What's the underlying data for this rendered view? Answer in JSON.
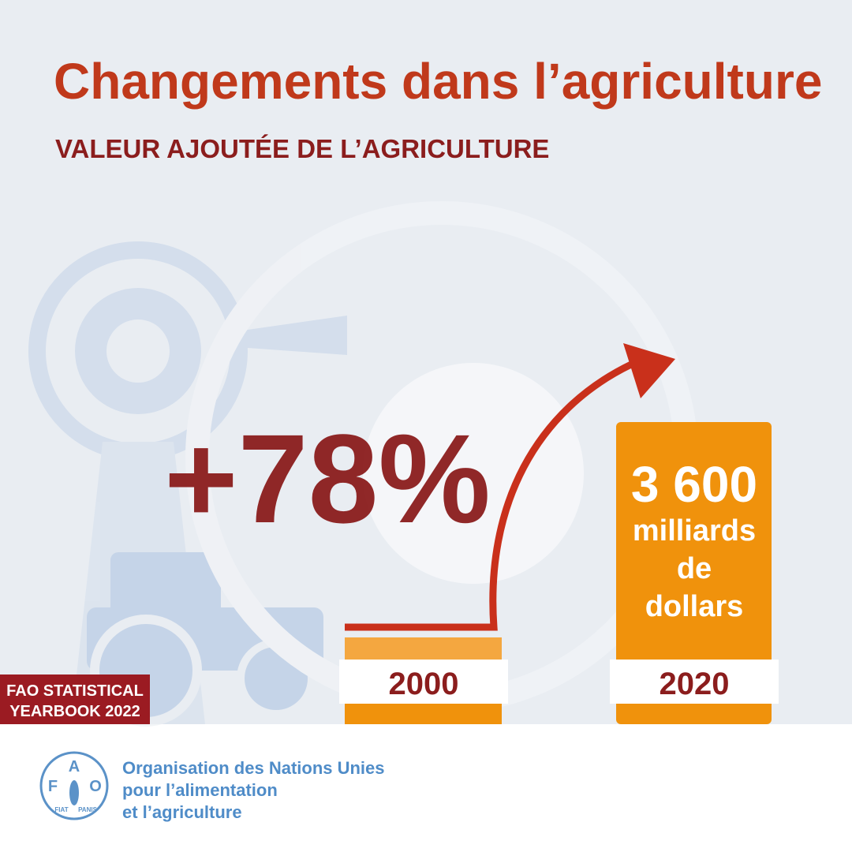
{
  "header": {
    "title": "Changements dans l’agriculture",
    "subtitle": "VALEUR AJOUTÉE DE L’AGRICULTURE"
  },
  "highlight": {
    "change": "+78%",
    "value": "3 600",
    "unit": [
      "milliards",
      "de",
      "dollars"
    ]
  },
  "years": [
    "2000",
    "2020"
  ],
  "badge": [
    "FAO STATISTICAL",
    "YEARBOOK 2022"
  ],
  "footer": {
    "logo_letters": [
      "F",
      "A",
      "O"
    ],
    "motto": [
      "FIAT",
      "PANIS"
    ],
    "organization": [
      "Organisation des Nations Unies",
      "pour l’alimentation",
      "et l’agriculture"
    ]
  }
}
